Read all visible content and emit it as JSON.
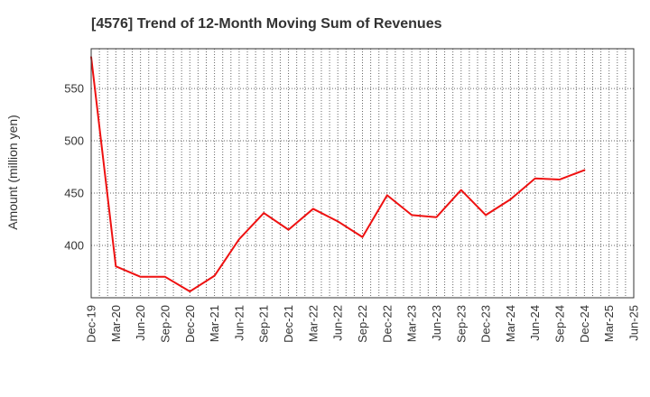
{
  "chart_data": {
    "type": "line",
    "title": "[4576]  Trend of 12-Month Moving Sum of Revenues",
    "xlabel": "",
    "ylabel": "Amount (million yen)",
    "ylim": [
      350,
      588
    ],
    "yticks": [
      400,
      450,
      500,
      550
    ],
    "grid": true,
    "legend": "none",
    "x_tick_labels": [
      "Dec-19",
      "Mar-20",
      "Jun-20",
      "Sep-20",
      "Dec-20",
      "Mar-21",
      "Jun-21",
      "Sep-21",
      "Dec-21",
      "Mar-22",
      "Jun-22",
      "Sep-22",
      "Dec-22",
      "Mar-23",
      "Jun-23",
      "Sep-23",
      "Dec-23",
      "Mar-24",
      "Jun-24",
      "Sep-24",
      "Dec-24",
      "Mar-25",
      "Jun-25"
    ],
    "series": [
      {
        "color": "#ee1111",
        "values": [
          580,
          380,
          370,
          370,
          356,
          371,
          406,
          431,
          415,
          435,
          423,
          408,
          448,
          429,
          427,
          453,
          429,
          444,
          464,
          463,
          472
        ]
      }
    ]
  }
}
